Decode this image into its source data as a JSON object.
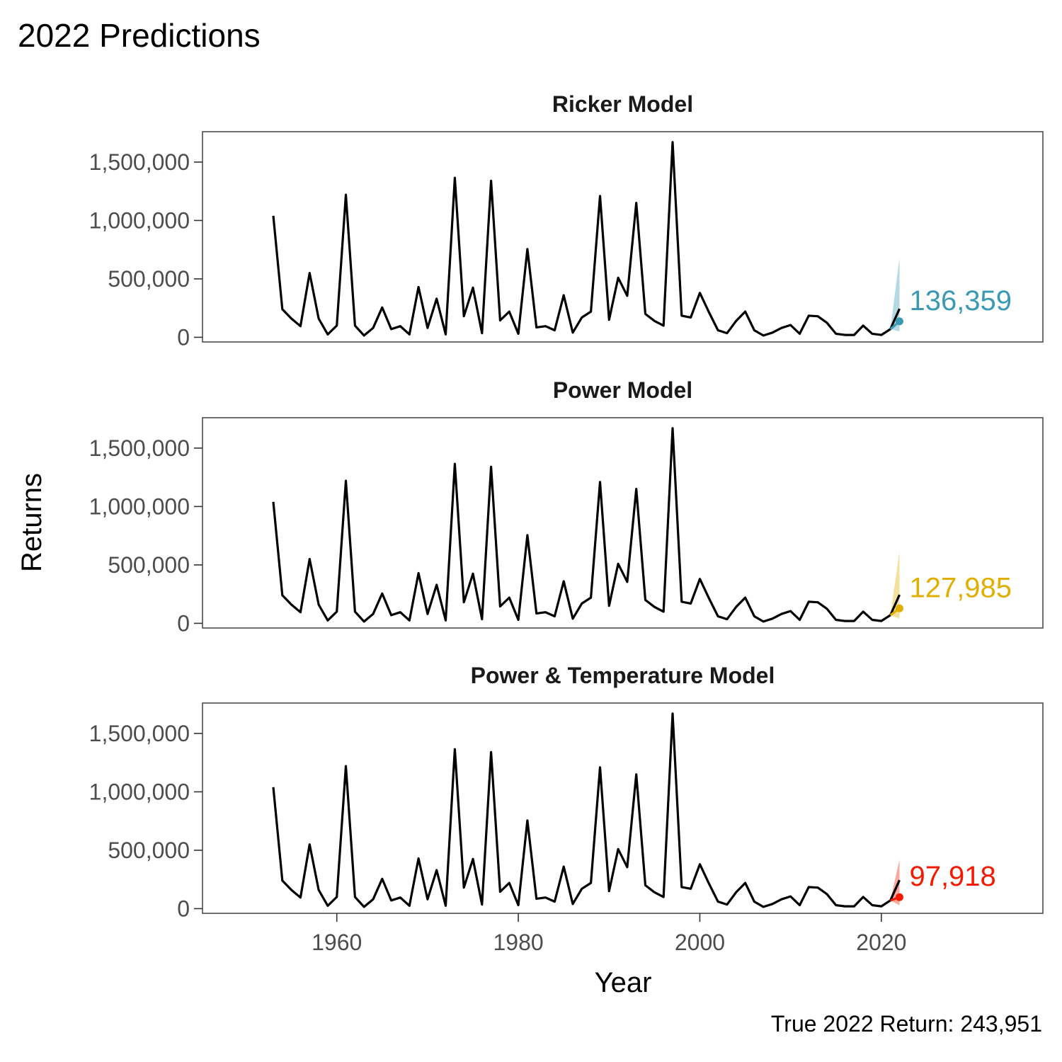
{
  "title": "2022 Predictions",
  "caption": "True 2022 Return: 243,951",
  "axes": {
    "xlabel": "Year",
    "ylabel": "Returns",
    "xlim": [
      1945.2,
      2037.8
    ],
    "ylim": [
      -40000,
      1760000
    ],
    "xticks": [
      1960,
      1980,
      2000,
      2020
    ],
    "yticks": [
      0,
      500000,
      1000000,
      1500000
    ],
    "xtick_labels": [
      "1960",
      "1980",
      "2000",
      "2020"
    ],
    "ytick_labels": [
      "0",
      "500,000",
      "1,000,000",
      "1,500,000"
    ],
    "grid": false
  },
  "colors": {
    "line": "#000000",
    "ricker": "#3B9AB2",
    "power": "#E1AF00",
    "power_temp": "#F21A00"
  },
  "chart_data": {
    "type": "line",
    "x": [
      1953,
      1954,
      1955,
      1956,
      1957,
      1958,
      1959,
      1960,
      1961,
      1962,
      1963,
      1964,
      1965,
      1966,
      1967,
      1968,
      1969,
      1970,
      1971,
      1972,
      1973,
      1974,
      1975,
      1976,
      1977,
      1978,
      1979,
      1980,
      1981,
      1982,
      1983,
      1984,
      1985,
      1986,
      1987,
      1988,
      1989,
      1990,
      1991,
      1992,
      1993,
      1994,
      1995,
      1996,
      1997,
      1998,
      1999,
      2000,
      2001,
      2002,
      2003,
      2004,
      2005,
      2006,
      2007,
      2008,
      2009,
      2010,
      2011,
      2012,
      2013,
      2014,
      2015,
      2016,
      2017,
      2018,
      2019,
      2020,
      2021,
      2022
    ],
    "observed": [
      1040000,
      240000,
      160000,
      95000,
      550000,
      160000,
      25000,
      100000,
      1220000,
      100000,
      15000,
      80000,
      255000,
      70000,
      95000,
      25000,
      430000,
      80000,
      330000,
      25000,
      1365000,
      180000,
      425000,
      35000,
      1340000,
      145000,
      220000,
      30000,
      755000,
      85000,
      95000,
      60000,
      360000,
      40000,
      170000,
      220000,
      1210000,
      150000,
      510000,
      355000,
      1150000,
      200000,
      140000,
      100000,
      1670000,
      185000,
      170000,
      380000,
      215000,
      60000,
      35000,
      140000,
      220000,
      60000,
      15000,
      40000,
      80000,
      105000,
      30000,
      185000,
      180000,
      125000,
      30000,
      20000,
      20000,
      100000,
      30000,
      20000,
      70000,
      243951
    ],
    "panels": [
      {
        "name": "Ricker Model",
        "color_key": "ricker",
        "prediction_year": 2022,
        "prediction": 136359,
        "prediction_label": "136,359",
        "interval": {
          "from_year": 2021,
          "from_value": 70000,
          "lower": 50000,
          "upper": 680000
        }
      },
      {
        "name": "Power Model",
        "color_key": "power",
        "prediction_year": 2022,
        "prediction": 127985,
        "prediction_label": "127,985",
        "interval": {
          "from_year": 2021,
          "from_value": 70000,
          "lower": 40000,
          "upper": 620000
        }
      },
      {
        "name": "Power & Temperature Model",
        "color_key": "power_temp",
        "prediction_year": 2022,
        "prediction": 97918,
        "prediction_label": "97,918",
        "interval": {
          "from_year": 2021,
          "from_value": 70000,
          "lower": 30000,
          "upper": 420000
        }
      }
    ]
  }
}
